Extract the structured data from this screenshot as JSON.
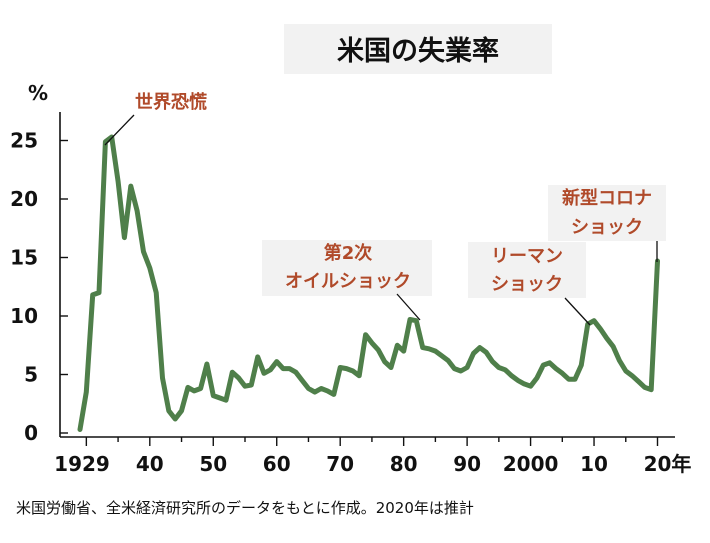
{
  "chart_data": {
    "type": "line",
    "title": "米国の失業率",
    "ylabel": "%",
    "xlabel": "",
    "ylim": [
      0,
      27
    ],
    "xlim": [
      1929,
      2022
    ],
    "yticks": [
      0,
      5,
      10,
      15,
      20,
      25
    ],
    "xtick_values": [
      1929,
      1940,
      1950,
      1960,
      1970,
      1980,
      1990,
      2000,
      2010,
      2020
    ],
    "xtick_labels": [
      "1929",
      "40",
      "50",
      "60",
      "70",
      "80",
      "90",
      "2000",
      "10",
      "20年"
    ],
    "grid": false,
    "legend": "none",
    "series": [
      {
        "color": "#4f7f4a",
        "x": [
          1929,
          1930,
          1931,
          1932,
          1933,
          1934,
          1935,
          1936,
          1937,
          1938,
          1939,
          1940,
          1941,
          1942,
          1943,
          1944,
          1945,
          1946,
          1947,
          1948,
          1949,
          1950,
          1951,
          1952,
          1953,
          1954,
          1955,
          1956,
          1957,
          1958,
          1959,
          1960,
          1961,
          1962,
          1963,
          1964,
          1965,
          1966,
          1967,
          1968,
          1969,
          1970,
          1971,
          1972,
          1973,
          1974,
          1975,
          1976,
          1977,
          1978,
          1979,
          1980,
          1981,
          1982,
          1983,
          1984,
          1985,
          1986,
          1987,
          1988,
          1989,
          1990,
          1991,
          1992,
          1993,
          1994,
          1995,
          1996,
          1997,
          1998,
          1999,
          2000,
          2001,
          2002,
          2003,
          2004,
          2005,
          2006,
          2007,
          2008,
          2009,
          2010,
          2011,
          2012,
          2013,
          2014,
          2015,
          2016,
          2017,
          2018,
          2019,
          2020
        ],
        "y": [
          0.3,
          3.5,
          11.8,
          12.0,
          24.9,
          25.3,
          21.5,
          16.7,
          21.1,
          19.0,
          15.5,
          14.1,
          12.0,
          4.7,
          1.9,
          1.2,
          1.9,
          3.9,
          3.6,
          3.8,
          5.9,
          3.2,
          3.0,
          2.8,
          5.2,
          4.7,
          4.0,
          4.1,
          6.5,
          5.1,
          5.4,
          6.1,
          5.5,
          5.5,
          5.2,
          4.5,
          3.8,
          3.5,
          3.8,
          3.6,
          3.3,
          5.6,
          5.5,
          5.3,
          4.9,
          8.4,
          7.7,
          7.1,
          6.1,
          5.6,
          7.5,
          7.0,
          9.7,
          9.6,
          7.3,
          7.2,
          7.0,
          6.6,
          6.2,
          5.5,
          5.3,
          5.6,
          6.8,
          7.3,
          6.9,
          6.1,
          5.6,
          5.4,
          4.9,
          4.5,
          4.2,
          4.0,
          4.7,
          5.8,
          6.0,
          5.5,
          5.1,
          4.6,
          4.6,
          5.8,
          9.3,
          9.6,
          8.9,
          8.1,
          7.4,
          6.2,
          5.3,
          4.9,
          4.4,
          3.9,
          3.7,
          14.7
        ]
      }
    ],
    "annotations": [
      {
        "lines": [
          "世界恐慌"
        ],
        "x": 1933
      },
      {
        "lines": [
          "第2次",
          "オイルショック"
        ],
        "x": 1982
      },
      {
        "lines": [
          "リーマン",
          "ショック"
        ],
        "x": 2009
      },
      {
        "lines": [
          "新型コロナ",
          "ショック"
        ],
        "x": 2020
      }
    ]
  },
  "source_note": "米国労働省、全米経済研究所のデータをもとに作成。2020年は推計"
}
